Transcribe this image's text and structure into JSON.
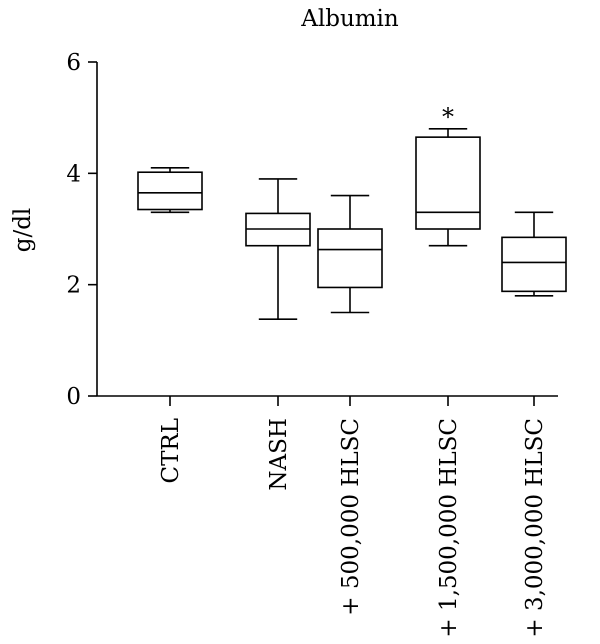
{
  "chart_data": {
    "type": "boxplot",
    "title": "Albumin",
    "ylabel": "g/dl",
    "xlabel": "",
    "ylim": [
      0,
      6
    ],
    "yticks": [
      0,
      2,
      4,
      6
    ],
    "grid": false,
    "categories": [
      "CTRL",
      "NASH",
      "+ 500,000 HLSC",
      "+ 1,500,000 HLSC",
      "+ 3,000,000 HLSC"
    ],
    "boxes": [
      {
        "min": 3.3,
        "q1": 3.35,
        "median": 3.65,
        "q3": 4.02,
        "max": 4.1,
        "annotation": ""
      },
      {
        "min": 1.38,
        "q1": 2.7,
        "median": 3.0,
        "q3": 3.28,
        "max": 3.9,
        "annotation": ""
      },
      {
        "min": 1.5,
        "q1": 1.95,
        "median": 2.63,
        "q3": 3.0,
        "max": 3.6,
        "annotation": ""
      },
      {
        "min": 2.7,
        "q1": 3.0,
        "median": 3.3,
        "q3": 4.65,
        "max": 4.8,
        "annotation": "*"
      },
      {
        "min": 1.8,
        "q1": 1.88,
        "median": 2.4,
        "q3": 2.85,
        "max": 3.3,
        "annotation": ""
      }
    ]
  }
}
